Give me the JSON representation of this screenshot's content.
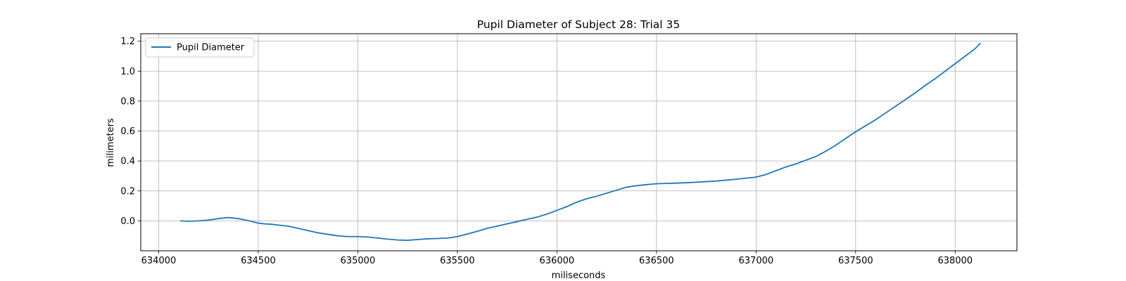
{
  "chart_data": {
    "type": "line",
    "title": "Pupil Diameter of Subject 28: Trial 35",
    "xlabel": "miliseconds",
    "ylabel": "milimeters",
    "xlim": [
      633910,
      638310
    ],
    "ylim": [
      -0.2,
      1.25
    ],
    "xticks": [
      634000,
      634500,
      635000,
      635500,
      636000,
      636500,
      637000,
      637500,
      638000
    ],
    "yticks": [
      0.0,
      0.2,
      0.4,
      0.6,
      0.8,
      1.0,
      1.2
    ],
    "ytick_labels": [
      "0.0",
      "0.2",
      "0.4",
      "0.6",
      "0.8",
      "1.0",
      "1.2"
    ],
    "grid": true,
    "legend_position": "upper-left",
    "line_color": "#1f77b4",
    "series": [
      {
        "name": "Pupil Diameter",
        "color": "#1f77b4",
        "x": [
          634110,
          634150,
          634200,
          634250,
          634300,
          634350,
          634400,
          634450,
          634500,
          634530,
          634560,
          634600,
          634650,
          634700,
          634750,
          634800,
          634850,
          634900,
          634950,
          635000,
          635050,
          635100,
          635150,
          635200,
          635250,
          635300,
          635350,
          635400,
          635450,
          635500,
          635550,
          635600,
          635650,
          635700,
          635750,
          635800,
          635850,
          635900,
          635950,
          636000,
          636050,
          636100,
          636150,
          636200,
          636250,
          636300,
          636350,
          636400,
          636450,
          636500,
          636550,
          636600,
          636650,
          636700,
          636750,
          636800,
          636850,
          636900,
          636950,
          637000,
          637050,
          637100,
          637150,
          637200,
          637250,
          637300,
          637350,
          637400,
          637450,
          637500,
          637550,
          637600,
          637650,
          637700,
          637750,
          637800,
          637850,
          637900,
          637950,
          638000,
          638050,
          638100,
          638125
        ],
        "y": [
          0.0,
          -0.003,
          0.0,
          0.005,
          0.015,
          0.022,
          0.015,
          0.002,
          -0.015,
          -0.02,
          -0.022,
          -0.028,
          -0.035,
          -0.05,
          -0.065,
          -0.08,
          -0.09,
          -0.1,
          -0.105,
          -0.105,
          -0.108,
          -0.115,
          -0.122,
          -0.128,
          -0.13,
          -0.125,
          -0.12,
          -0.118,
          -0.115,
          -0.105,
          -0.088,
          -0.07,
          -0.05,
          -0.035,
          -0.02,
          -0.005,
          0.01,
          0.025,
          0.045,
          0.07,
          0.095,
          0.125,
          0.148,
          0.165,
          0.185,
          0.205,
          0.225,
          0.235,
          0.242,
          0.248,
          0.25,
          0.252,
          0.255,
          0.258,
          0.262,
          0.266,
          0.272,
          0.278,
          0.285,
          0.292,
          0.31,
          0.335,
          0.36,
          0.38,
          0.405,
          0.43,
          0.465,
          0.505,
          0.55,
          0.595,
          0.635,
          0.675,
          0.72,
          0.765,
          0.81,
          0.855,
          0.905,
          0.95,
          1.0,
          1.05,
          1.1,
          1.15,
          1.185
        ]
      }
    ]
  }
}
